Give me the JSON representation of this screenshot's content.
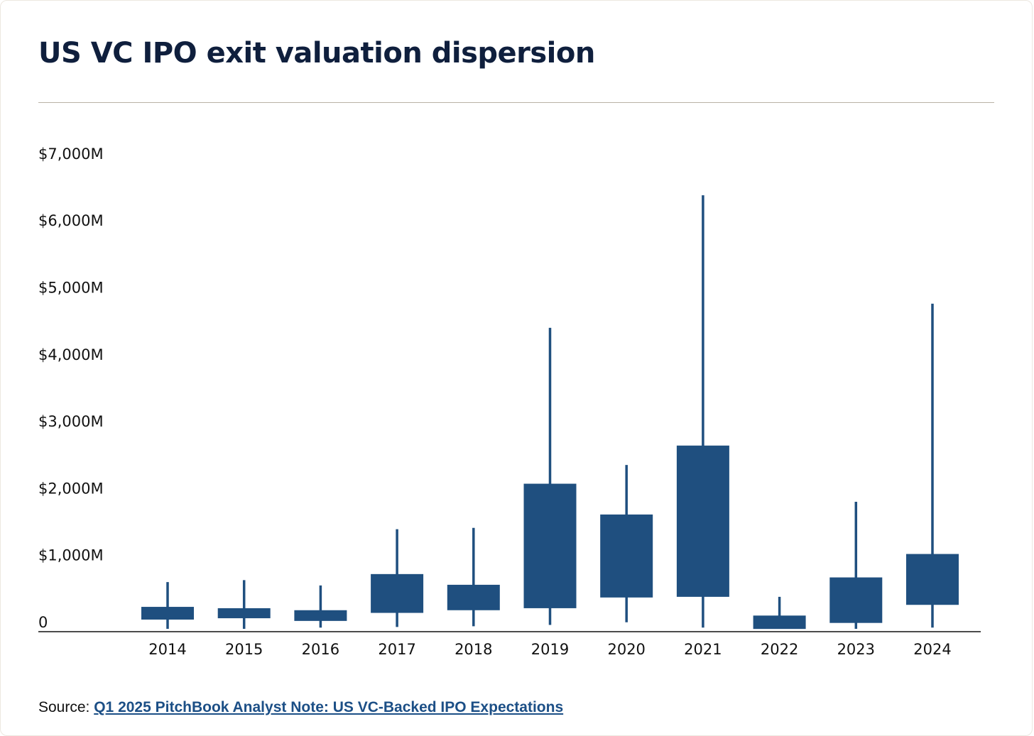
{
  "chart_data": {
    "type": "box",
    "title": "US VC IPO exit valuation dispersion",
    "xlabel": "",
    "ylabel": "",
    "ylim": [
      0,
      7000
    ],
    "y_ticks": [
      "0",
      "$1,000M",
      "$2,000M",
      "$3,000M",
      "$4,000M",
      "$5,000M",
      "$6,000M",
      "$7,000M"
    ],
    "y_tick_values": [
      0,
      1000,
      2000,
      3000,
      4000,
      5000,
      6000,
      7000
    ],
    "categories": [
      "2014",
      "2015",
      "2016",
      "2017",
      "2018",
      "2019",
      "2020",
      "2021",
      "2022",
      "2023",
      "2024"
    ],
    "series": [
      {
        "name": "whisker_low",
        "values": [
          30,
          30,
          50,
          60,
          70,
          90,
          130,
          50,
          10,
          30,
          50
        ]
      },
      {
        "name": "box_low",
        "values": [
          170,
          190,
          150,
          270,
          310,
          340,
          500,
          510,
          30,
          120,
          390
        ]
      },
      {
        "name": "box_high",
        "values": [
          360,
          340,
          310,
          850,
          690,
          2200,
          1740,
          2770,
          230,
          800,
          1150
        ]
      },
      {
        "name": "whisker_high",
        "values": [
          730,
          760,
          680,
          1520,
          1540,
          4530,
          2480,
          6510,
          510,
          1930,
          4890
        ]
      }
    ],
    "color": "#1f4f7f",
    "grid": false
  },
  "source": {
    "prefix": "Source: ",
    "link": "Q1 2025 PitchBook Analyst Note: US VC-Backed IPO Expectations"
  }
}
